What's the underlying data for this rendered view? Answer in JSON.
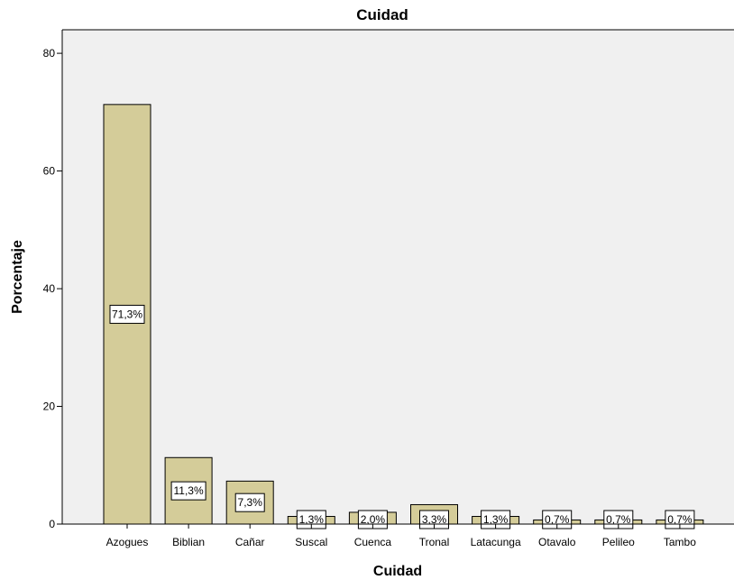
{
  "chart_data": {
    "type": "bar",
    "title": "Cuidad",
    "xlabel": "Cuidad",
    "ylabel": "Porcentaje",
    "categories": [
      "Azogues",
      "Biblian",
      "Cañar",
      "Suscal",
      "Cuenca",
      "Tronal",
      "Latacunga",
      "Otavalo",
      "Pelileo",
      "Tambo"
    ],
    "values": [
      71.3,
      11.3,
      7.3,
      1.3,
      2.0,
      3.3,
      1.3,
      0.7,
      0.7,
      0.7
    ],
    "data_labels": [
      "71,3%",
      "11,3%",
      "7,3%",
      "1,3%",
      "2,0%",
      "3,3%",
      "1,3%",
      "0,7%",
      "0,7%",
      "0,7%"
    ],
    "yticks": [
      0,
      20,
      40,
      60,
      80
    ],
    "ytick_labels": [
      "0",
      "20",
      "40",
      "60",
      "80"
    ],
    "ylim": [
      0,
      84
    ],
    "grid": false,
    "legend": "none",
    "colors": {
      "bar_fill": "#d4cc99",
      "bar_stroke": "#000000",
      "plot_bg": "#f0f0f0",
      "label_bg": "#ffffff"
    }
  }
}
